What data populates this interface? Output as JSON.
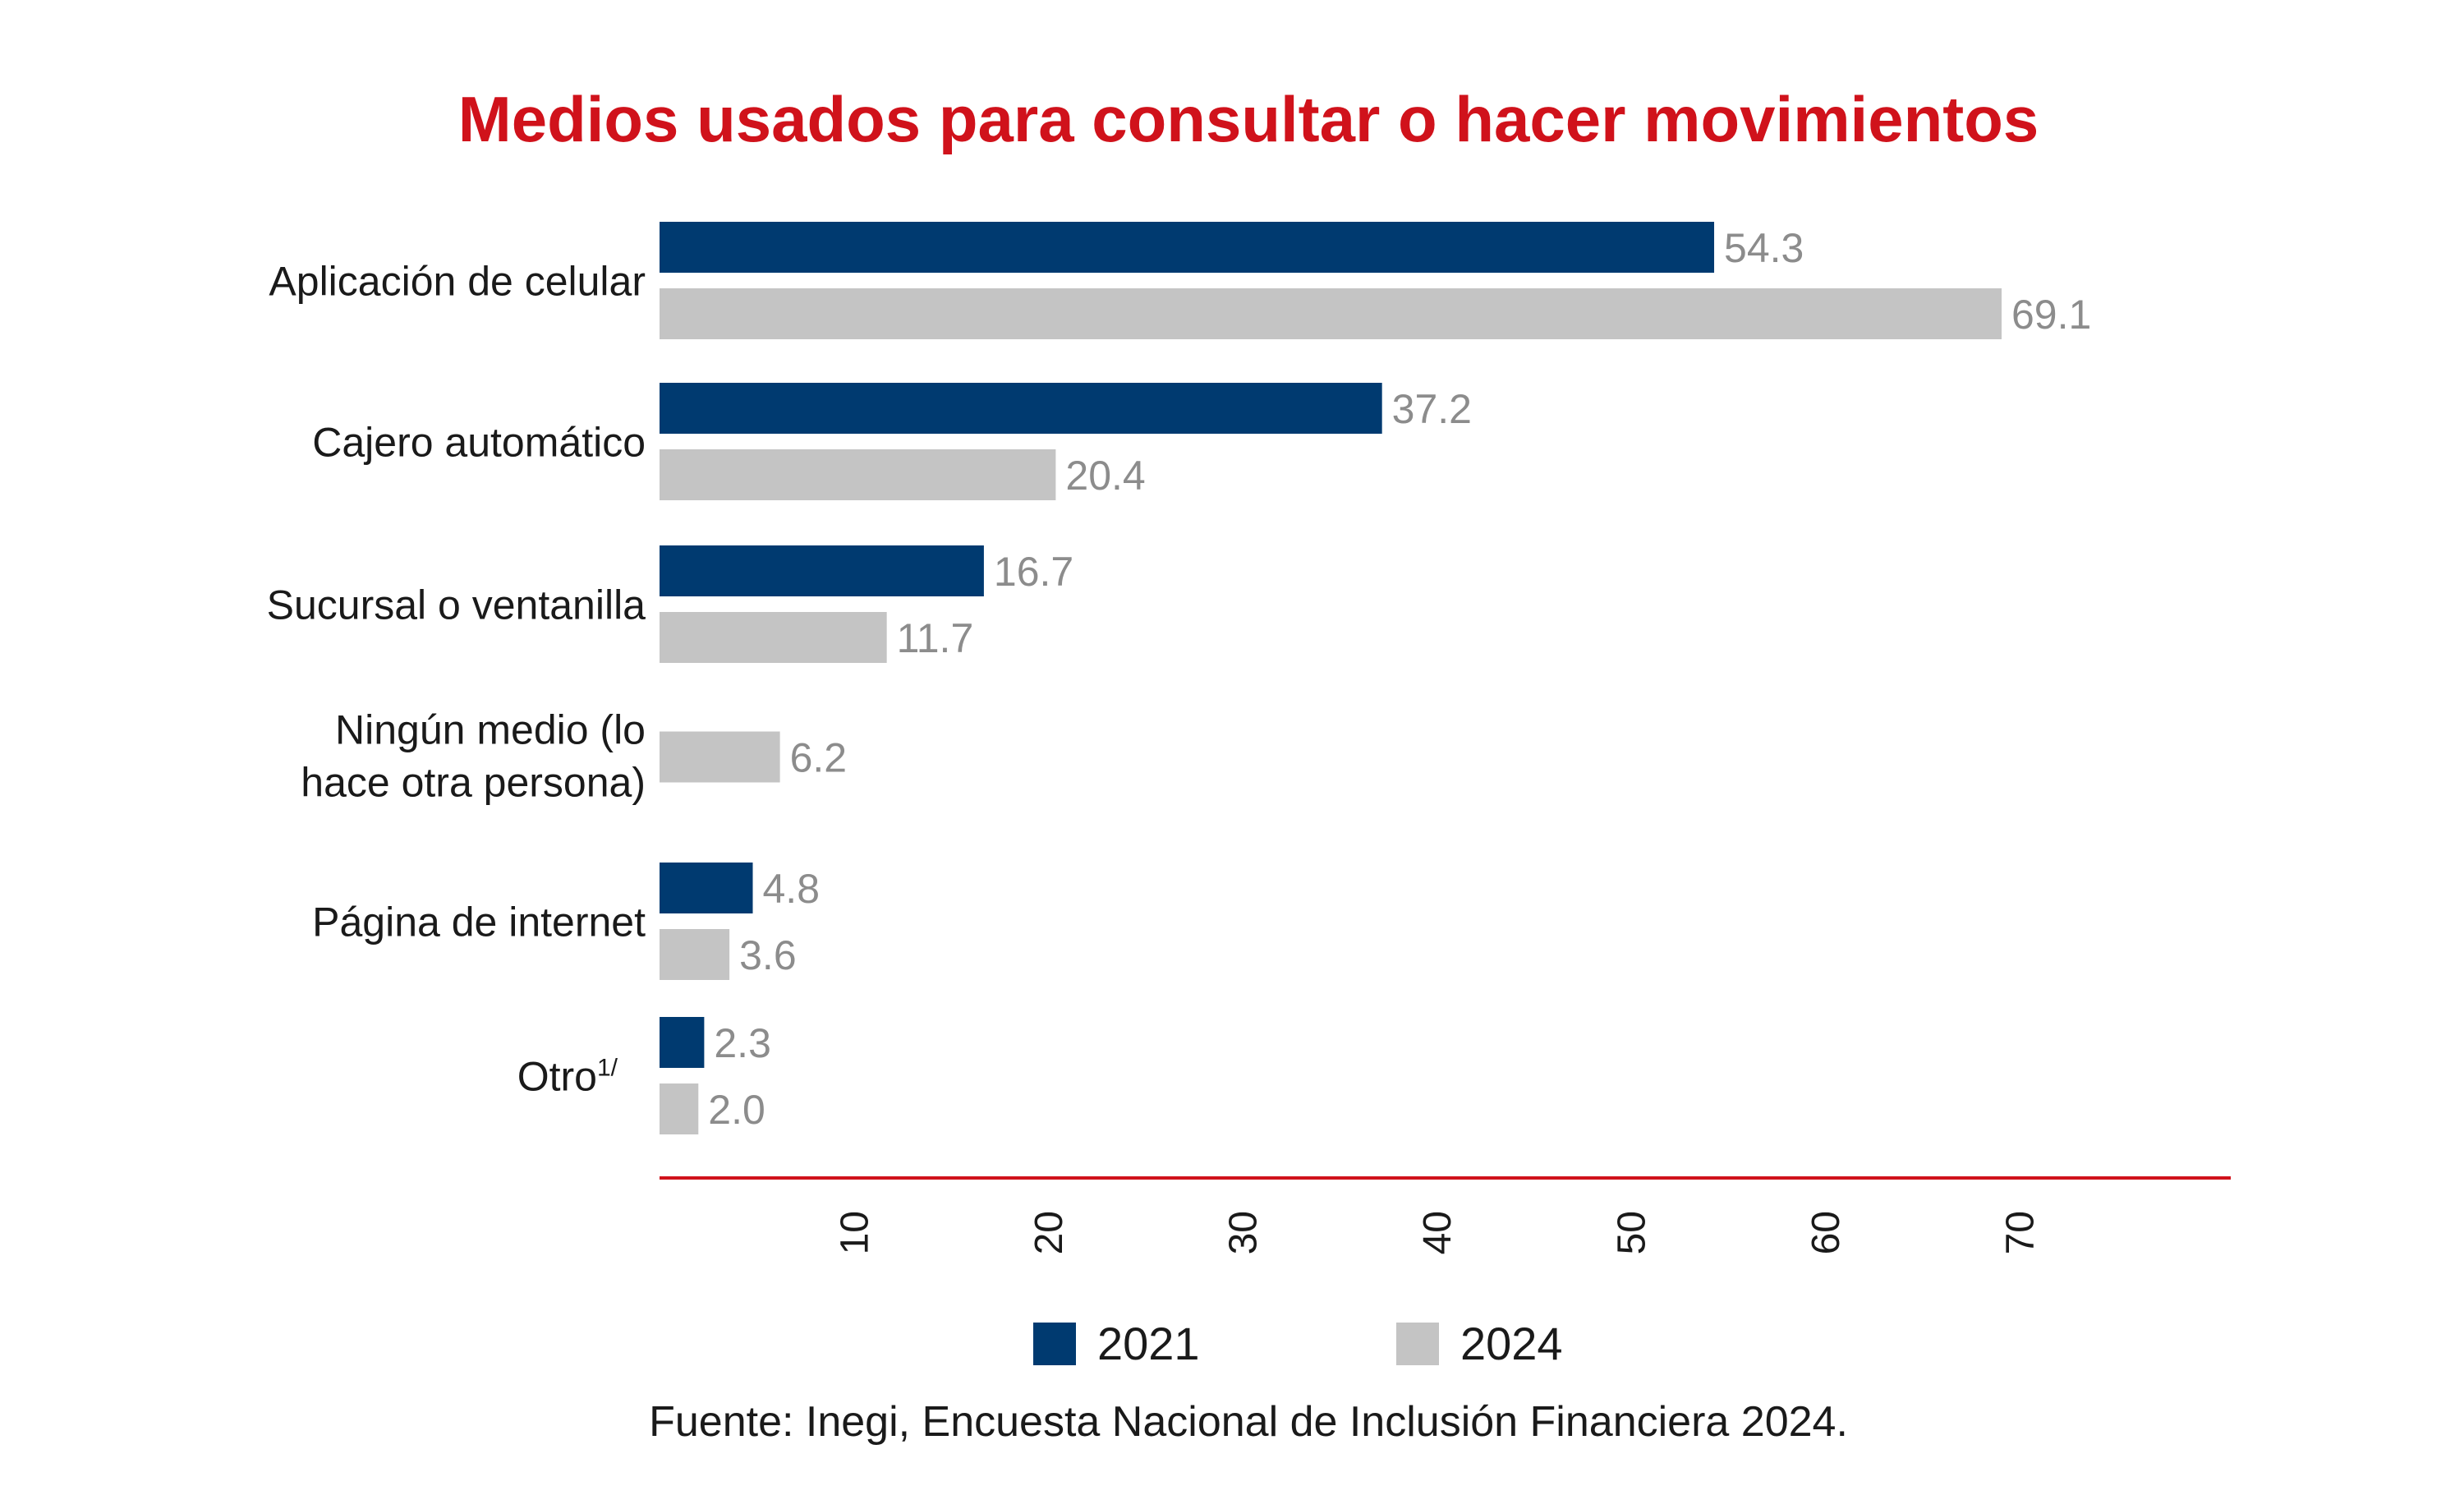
{
  "chart_data": {
    "type": "bar",
    "orientation": "horizontal",
    "title": "Medios usados para consultar o hacer movimientos",
    "categories": [
      {
        "lines": [
          "Aplicación de celular"
        ],
        "footnote": ""
      },
      {
        "lines": [
          "Cajero automático"
        ],
        "footnote": ""
      },
      {
        "lines": [
          "Sucursal o ventanilla"
        ],
        "footnote": ""
      },
      {
        "lines": [
          "Ningún medio (lo",
          "hace otra persona)"
        ],
        "footnote": ""
      },
      {
        "lines": [
          "Página de internet"
        ],
        "footnote": ""
      },
      {
        "lines": [
          "Otro"
        ],
        "footnote": "1/"
      }
    ],
    "series": [
      {
        "name": "2021",
        "color": "#003a70",
        "values": [
          54.3,
          37.2,
          16.7,
          null,
          4.8,
          2.3
        ],
        "labels": [
          "54.3",
          "37.2",
          "16.7",
          "",
          "4.8",
          "2.3"
        ]
      },
      {
        "name": "2024",
        "color": "#c4c4c4",
        "values": [
          69.1,
          20.4,
          11.7,
          6.2,
          3.6,
          2.0
        ],
        "labels": [
          "69.1",
          "20.4",
          "11.7",
          "6.2",
          "3.6",
          "2.0"
        ]
      }
    ],
    "xlim": [
      0,
      80
    ],
    "ticks": [
      "10",
      "20",
      "30",
      "40",
      "50",
      "60",
      "70"
    ],
    "tick_values": [
      10,
      20,
      30,
      40,
      50,
      60,
      70
    ],
    "axis_color": "#d0121b",
    "grid": false,
    "legend_position": "bottom"
  },
  "source": "Fuente: Inegi, Encuesta Nacional de Inclusión Financiera 2024."
}
